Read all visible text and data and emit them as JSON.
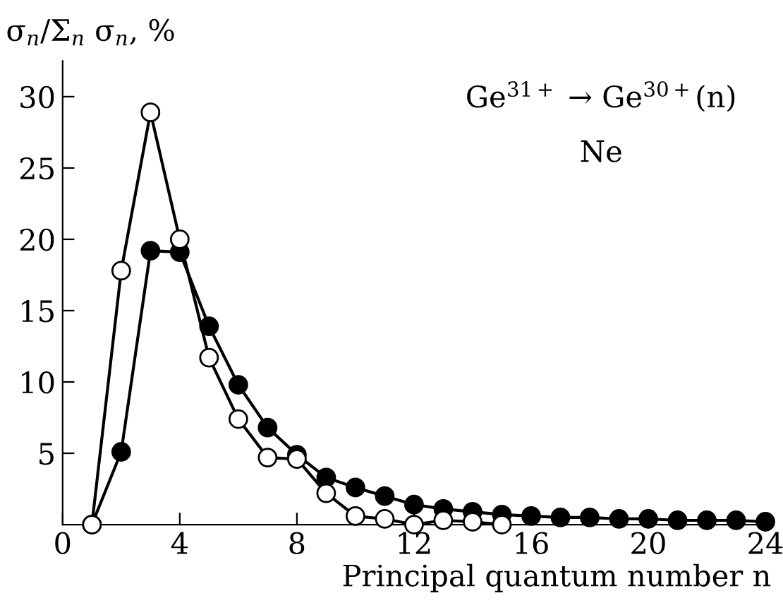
{
  "chart_data": {
    "type": "line",
    "ylabel": "σ$_{n}$/Σ$_{n}$ σ$_{n}$, %",
    "xlabel": "Principal quantum number n",
    "annotations": [
      "Ge$^{31+}$ → Ge$^{30+}$(n)",
      "Ne"
    ],
    "series": [
      {
        "color": "#000000",
        "marker": "circle",
        "x": [
          1,
          2,
          3,
          4,
          5,
          6,
          7,
          8,
          9,
          10,
          11,
          12,
          13,
          14,
          15,
          16,
          17,
          18,
          19,
          20,
          21,
          22,
          23,
          24
        ],
        "values": [
          0,
          5.1,
          19.2,
          19.1,
          13.9,
          9.8,
          6.8,
          4.9,
          3.3,
          2.6,
          2.0,
          1.4,
          1.1,
          0.9,
          0.7,
          0.6,
          0.5,
          0.5,
          0.4,
          0.4,
          0.3,
          0.3,
          0.3,
          0.2
        ]
      },
      {
        "color": "#ffffff",
        "marker": "circle",
        "x": [
          1,
          2,
          3,
          4,
          5,
          6,
          7,
          8,
          9,
          10,
          11,
          12,
          13,
          14,
          15
        ],
        "values": [
          0,
          17.8,
          28.9,
          20.0,
          11.7,
          7.4,
          4.7,
          4.6,
          2.2,
          0.6,
          0.4,
          0.0,
          0.3,
          0.2,
          0.0
        ]
      }
    ],
    "xlim": [
      0,
      24.2
    ],
    "xticks": [
      0,
      4,
      8,
      12,
      16,
      20,
      24
    ],
    "ylim": [
      0,
      32.5
    ],
    "yticks": [
      5,
      10,
      15,
      20,
      25,
      30
    ],
    "grid": false,
    "legend": false
  }
}
